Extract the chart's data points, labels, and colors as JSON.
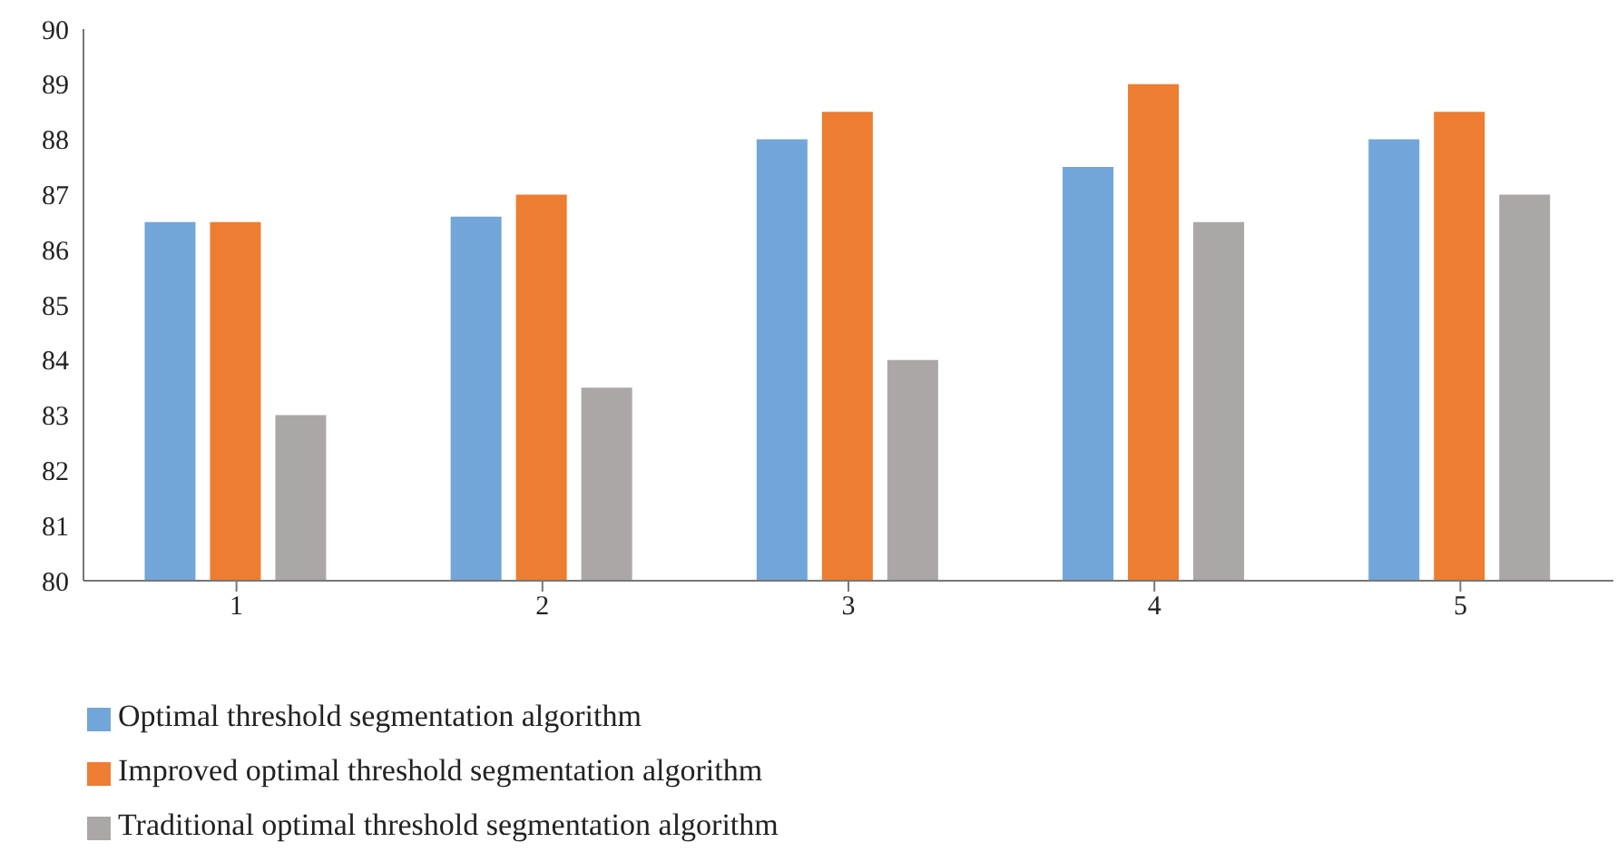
{
  "chart_data": {
    "type": "bar",
    "categories": [
      "1",
      "2",
      "3",
      "4",
      "5"
    ],
    "series": [
      {
        "name": "Optimal threshold segmentation algorithm",
        "color": "#72a5d8",
        "values": [
          86.5,
          86.6,
          88,
          87.5,
          88
        ]
      },
      {
        "name": "Improved optimal threshold segmentation algorithm",
        "color": "#ed7d31",
        "values": [
          86.5,
          87,
          88.5,
          89,
          88.5
        ]
      },
      {
        "name": "Traditional optimal threshold segmentation algorithm",
        "color": "#aba7a6",
        "values": [
          83,
          83.5,
          84,
          86.5,
          87
        ]
      }
    ],
    "ylim": [
      80,
      90
    ],
    "yticks": [
      80,
      81,
      82,
      83,
      84,
      85,
      86,
      87,
      88,
      89,
      90
    ],
    "grid": false,
    "legend": "bottom left"
  }
}
